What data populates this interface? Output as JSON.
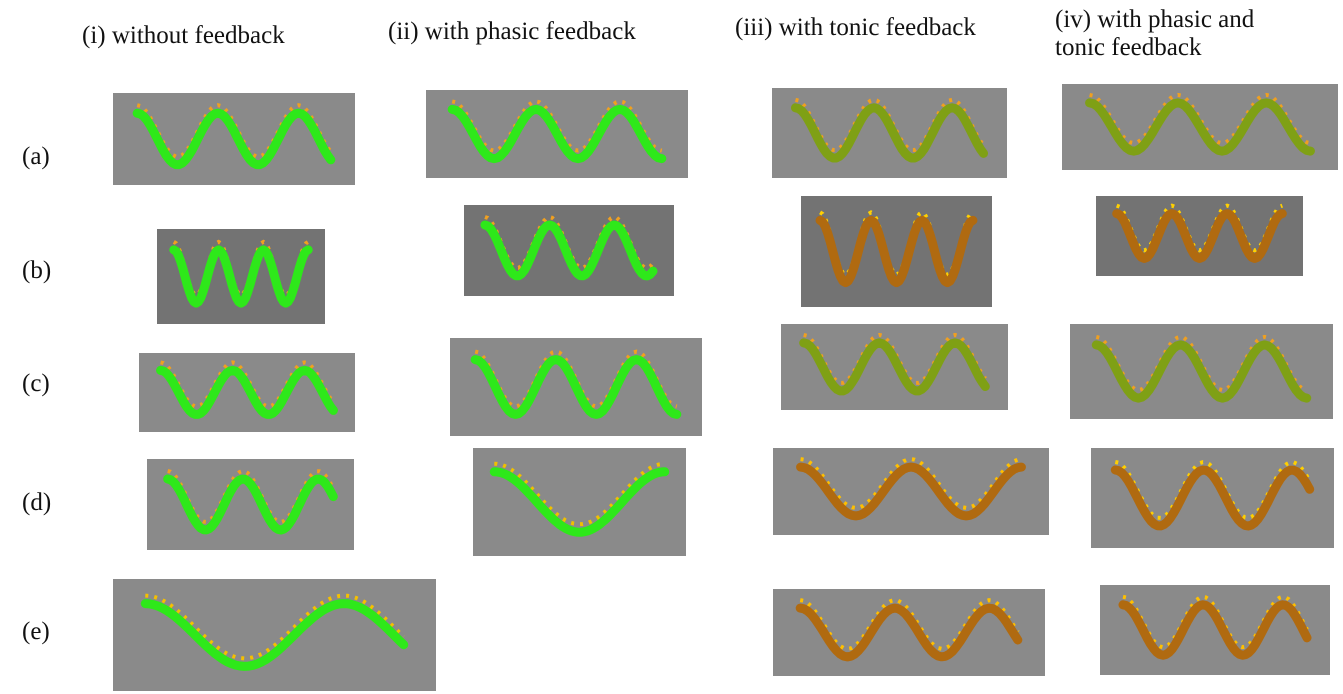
{
  "columns": [
    "(i) without feedback",
    "(ii) with phasic feedback",
    "(iii) with tonic feedback",
    "(iv) with phasic and tonic feedback"
  ],
  "rows": [
    "(a)",
    "(b)",
    "(c)",
    "(d)",
    "(e)"
  ]
}
